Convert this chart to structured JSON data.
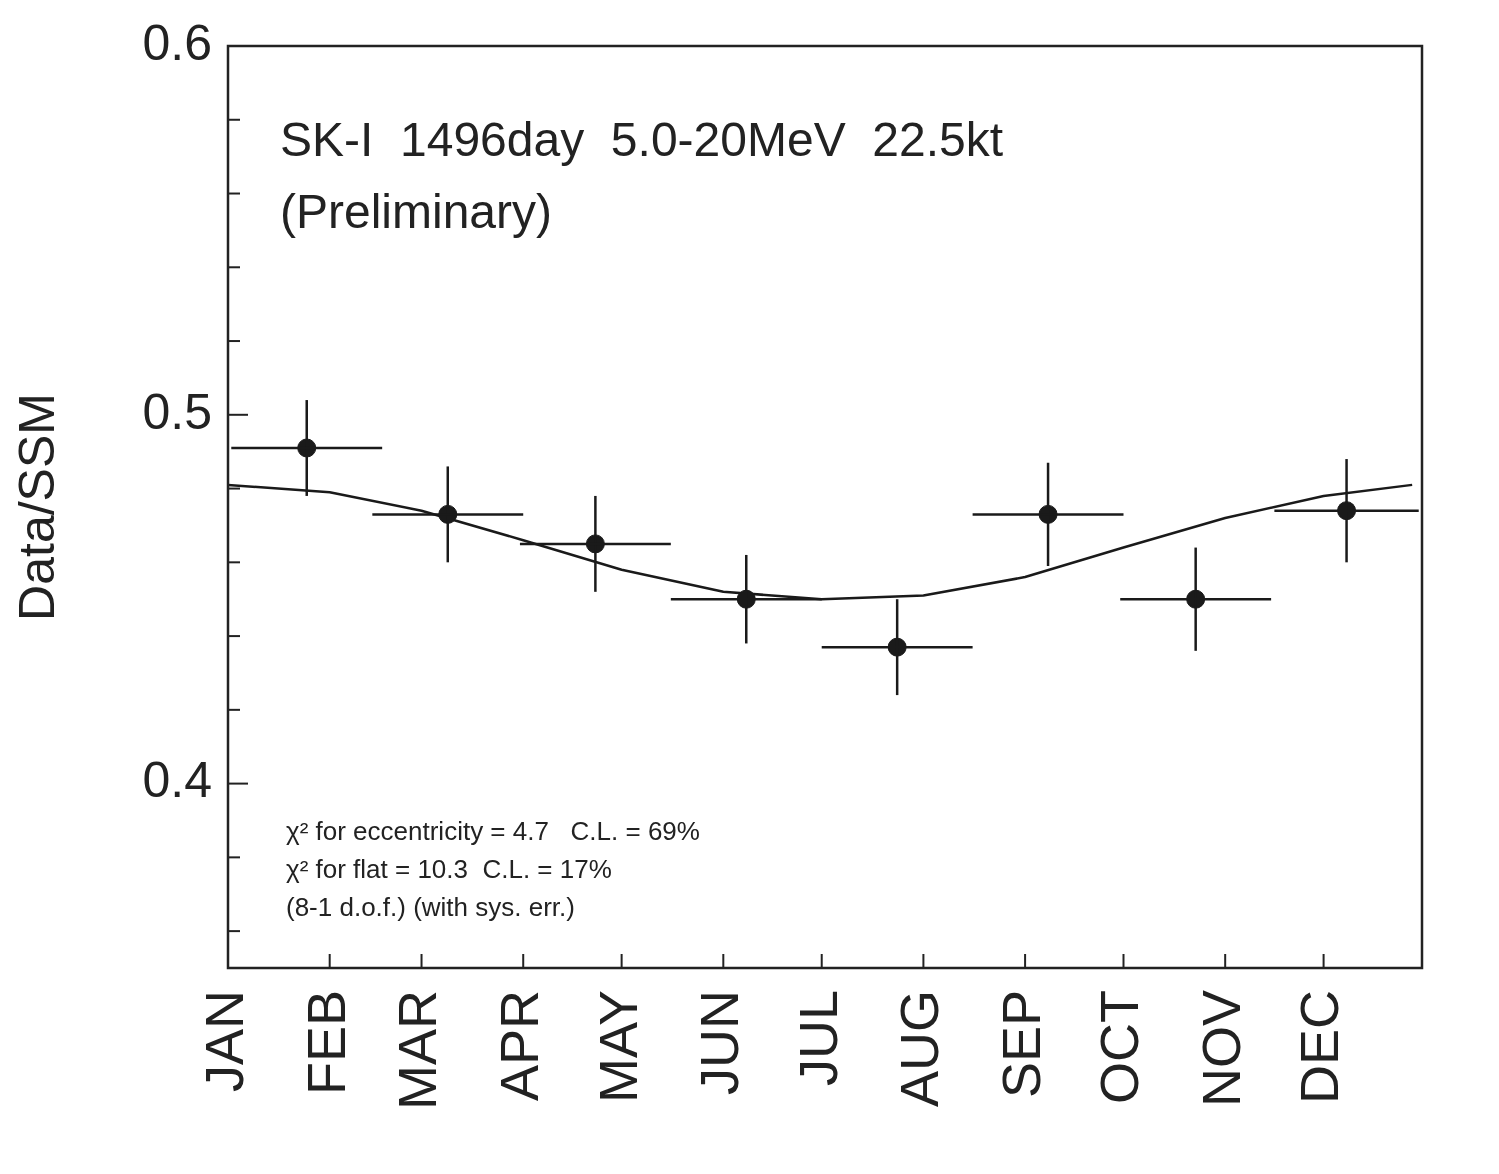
{
  "chart_data": {
    "type": "scatter",
    "ylabel": "Data/SSM",
    "annotations": [
      "SK-I  1496day  5.0-20MeV  22.5kt",
      "(Preliminary)",
      "χ² for eccentricity = 4.7   C.L. = 69%",
      "χ² for flat = 10.3  C.L. = 17%",
      "(8-1 d.o.f.) (with sys. err.)"
    ],
    "xlim": [
      "--01-01",
      "--12-31"
    ],
    "xticks": [
      {
        "value": "--01-01",
        "label": "JAN"
      },
      {
        "value": "--02-01",
        "label": "FEB"
      },
      {
        "value": "--03-01",
        "label": "MAR"
      },
      {
        "value": "--04-01",
        "label": "APR"
      },
      {
        "value": "--05-01",
        "label": "MAY"
      },
      {
        "value": "--06-01",
        "label": "JUN"
      },
      {
        "value": "--07-01",
        "label": "JUL"
      },
      {
        "value": "--08-01",
        "label": "AUG"
      },
      {
        "value": "--09-01",
        "label": "SEP"
      },
      {
        "value": "--10-01",
        "label": "OCT"
      },
      {
        "value": "--11-01",
        "label": "NOV"
      },
      {
        "value": "--12-01",
        "label": "DEC"
      }
    ],
    "ylim": [
      0.35,
      0.6
    ],
    "yticks": [
      {
        "value": 0.36,
        "label": null
      },
      {
        "value": 0.38,
        "label": null
      },
      0.4,
      {
        "value": 0.42,
        "label": null
      },
      {
        "value": 0.44,
        "label": null
      },
      {
        "value": 0.46,
        "label": null
      },
      {
        "value": 0.48,
        "label": null
      },
      0.5,
      {
        "value": 0.52,
        "label": null
      },
      {
        "value": 0.54,
        "label": null
      },
      {
        "value": 0.56,
        "label": null
      },
      {
        "value": 0.58,
        "label": null
      },
      0.6
    ],
    "grid": false,
    "legend": false,
    "marker": "circle",
    "series": [
      {
        "color": "#1a1a1a",
        "x": [
          "--01-25",
          "--03-09",
          "--04-23",
          "--06-08",
          "--07-24",
          "--09-08",
          "--10-23",
          "--12-08"
        ],
        "values": [
          0.491,
          0.473,
          0.465,
          0.45,
          0.437,
          0.473,
          0.45,
          0.474
        ],
        "errors": [
          0.013,
          0.013,
          0.013,
          0.012,
          0.013,
          0.014,
          0.014,
          0.014
        ],
        "xerrors": [
          23,
          23,
          23,
          23,
          23,
          23,
          23,
          22
        ]
      },
      {
        "type": "line",
        "color": "#1a1a1a",
        "marker": "none",
        "x": [
          "--01-01",
          "--02-01",
          "--03-01",
          "--04-01",
          "--05-01",
          "--06-01",
          "--07-01",
          "--08-01",
          "--09-01",
          "--10-01",
          "--11-01",
          "--12-01",
          "--12-28"
        ],
        "values": [
          0.481,
          0.479,
          0.474,
          0.466,
          0.458,
          0.452,
          0.45,
          0.451,
          0.456,
          0.464,
          0.472,
          0.478,
          0.481
        ]
      }
    ]
  }
}
